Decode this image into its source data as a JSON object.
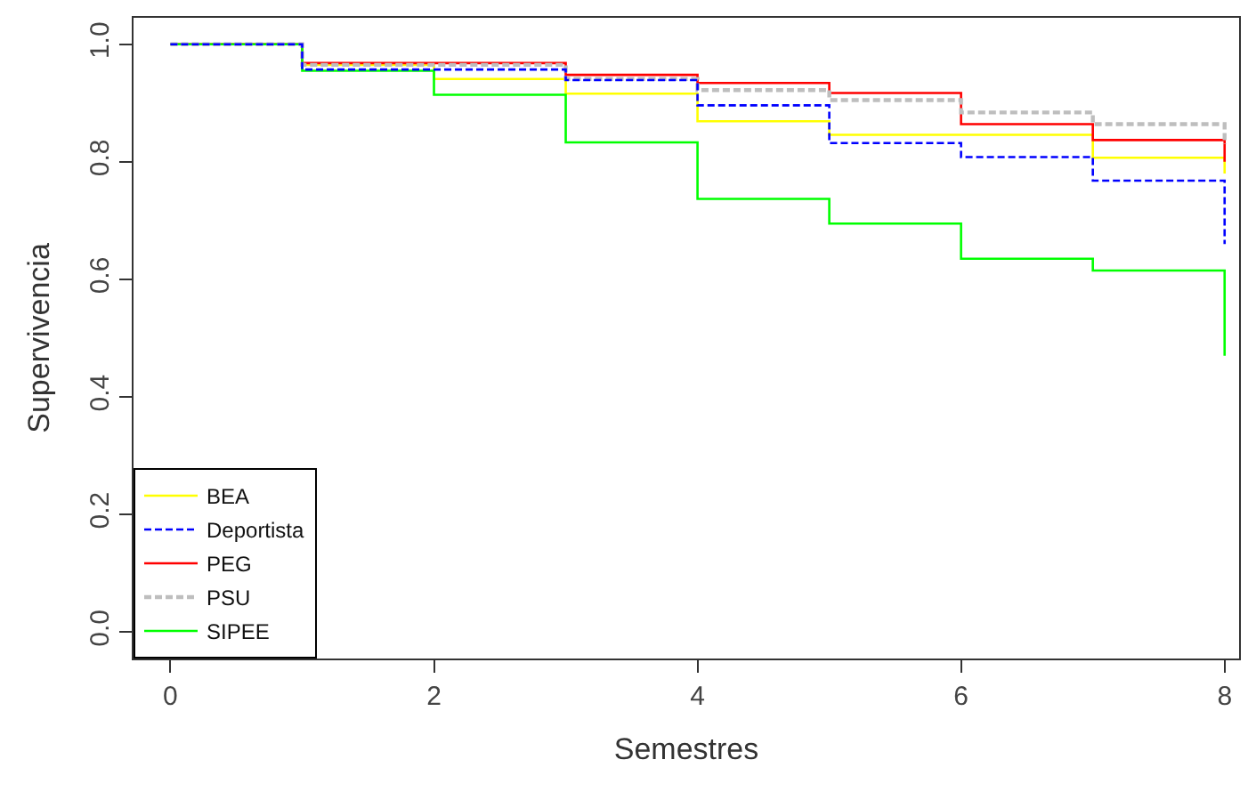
{
  "chart_data": {
    "type": "step",
    "xlabel": "Semestres",
    "ylabel": "Supervivencia",
    "x": [
      0,
      1,
      2,
      3,
      4,
      5,
      6,
      7,
      8,
      8
    ],
    "series": [
      {
        "name": "BEA",
        "color": "#ffff00",
        "line_style": "solid",
        "values": [
          1.0,
          0.965,
          0.941,
          0.916,
          0.869,
          0.846,
          0.846,
          0.807,
          0.807,
          0.78
        ]
      },
      {
        "name": "Deportista",
        "color": "#0000ff",
        "line_style": "dashed",
        "values": [
          1.0,
          0.957,
          0.957,
          0.939,
          0.896,
          0.832,
          0.808,
          0.768,
          0.768,
          0.66
        ]
      },
      {
        "name": "PEG",
        "color": "#ff0000",
        "line_style": "solid",
        "values": [
          1.0,
          0.968,
          0.968,
          0.948,
          0.934,
          0.917,
          0.864,
          0.837,
          0.837,
          0.8
        ]
      },
      {
        "name": "PSU",
        "color": "#bebebe",
        "line_style": "dashed",
        "values": [
          1.0,
          0.965,
          0.965,
          0.941,
          0.922,
          0.905,
          0.884,
          0.864,
          0.864,
          0.83
        ]
      },
      {
        "name": "SIPEE",
        "color": "#00ff00",
        "line_style": "solid",
        "values": [
          1.0,
          0.955,
          0.914,
          0.833,
          0.737,
          0.695,
          0.635,
          0.615,
          0.615,
          0.47
        ]
      }
    ],
    "xlim": [
      -0.28,
      8.11
    ],
    "ylim": [
      -0.045,
      1.045
    ],
    "xticks": [
      0,
      2,
      4,
      6,
      8
    ],
    "yticks": [
      {
        "value": 0,
        "label": "0.0"
      },
      {
        "value": 0.2,
        "label": "0.2"
      },
      {
        "value": 0.4,
        "label": "0.4"
      },
      {
        "value": 0.6,
        "label": "0.6"
      },
      {
        "value": 0.8,
        "label": "0.8"
      },
      {
        "value": 1.0,
        "label": "1.0"
      }
    ],
    "legend": "bottom left"
  }
}
